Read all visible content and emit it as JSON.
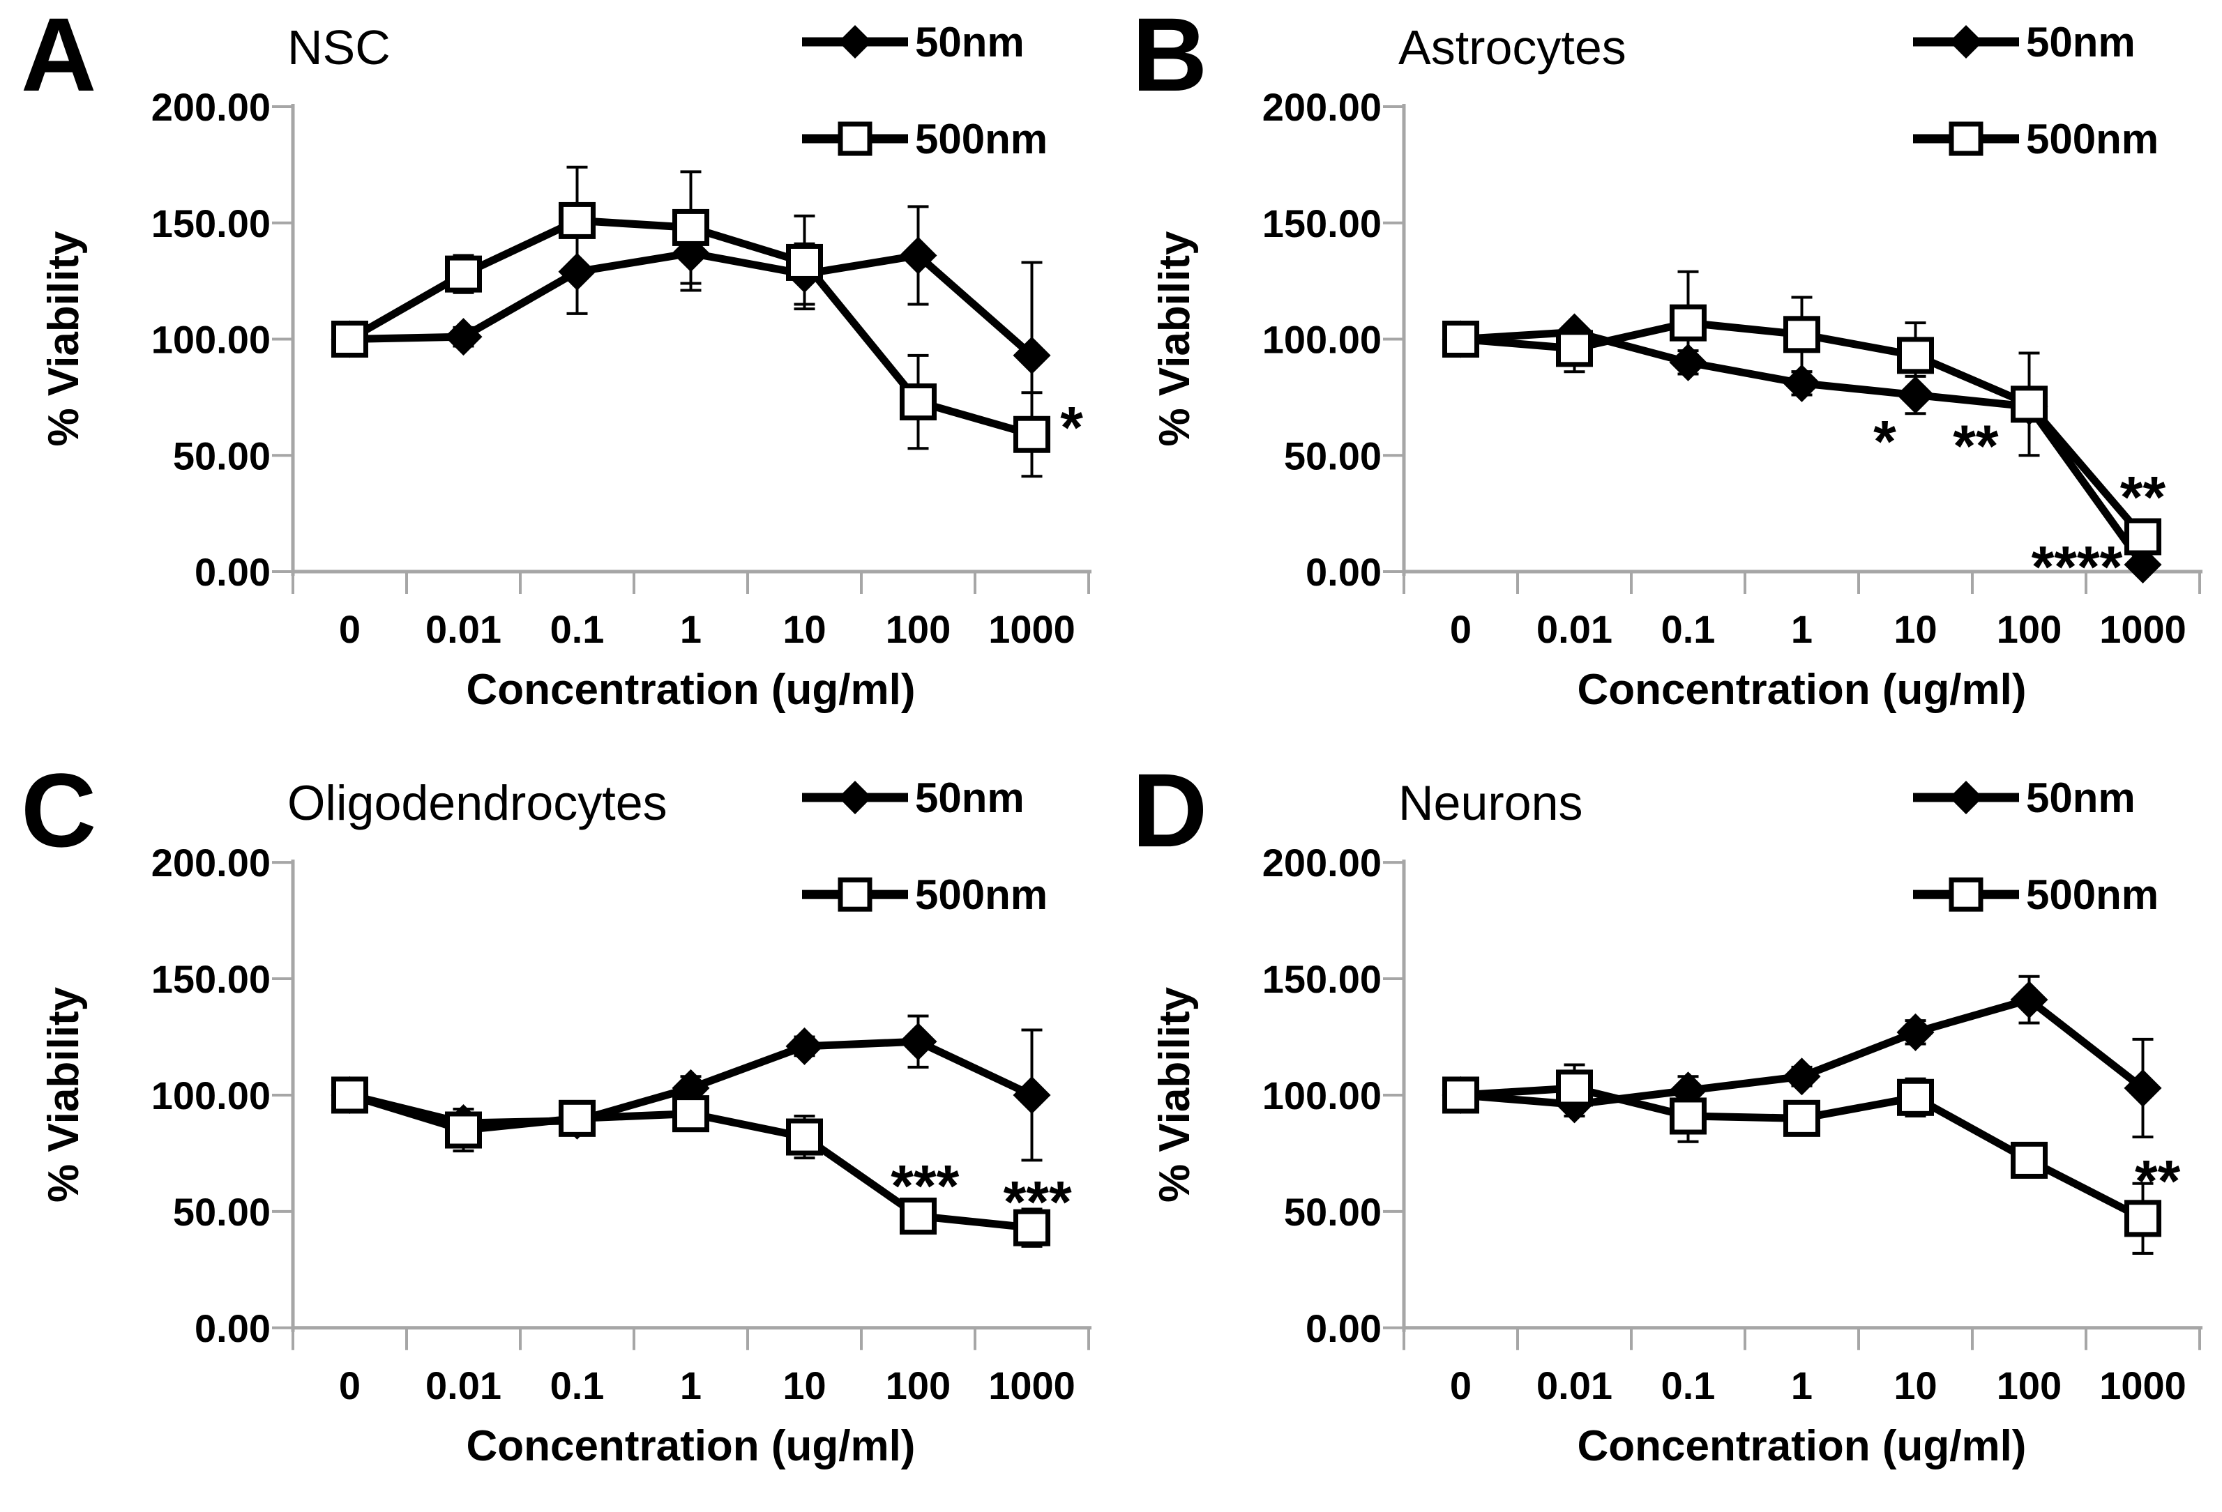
{
  "figure": {
    "description_visible_text_only": true,
    "colors": {
      "series": "#000000",
      "axis": "#a6a6a6",
      "text": "#000000",
      "background": "#ffffff"
    }
  },
  "chart_data": [
    {
      "panel_letter": "A",
      "title": "NSC",
      "type": "line",
      "categories": [
        "0",
        "0.01",
        "0.1",
        "1",
        "10",
        "100",
        "1000"
      ],
      "xlabel": "Concentration (ug/ml)",
      "ylabel": "% Viability",
      "ylim": [
        0,
        200
      ],
      "ytick_values": [
        200,
        150,
        100,
        50,
        0
      ],
      "ytick_labels": [
        "200.00",
        "150.00",
        "100.00",
        "50.00",
        "0.00"
      ],
      "grid": false,
      "legend_position": "top-right",
      "legend": [
        {
          "label": "50nm",
          "marker": "diamond"
        },
        {
          "label": "500nm",
          "marker": "square"
        }
      ],
      "series": [
        {
          "name": "50nm",
          "marker": "diamond",
          "values": [
            100,
            101,
            129,
            137,
            128,
            136,
            93
          ],
          "errors": [
            0,
            4,
            18,
            16,
            13,
            21,
            40
          ]
        },
        {
          "name": "500nm",
          "marker": "square",
          "values": [
            100,
            128,
            151,
            148,
            133,
            73,
            59
          ],
          "errors": [
            0,
            8,
            23,
            24,
            20,
            20,
            18
          ]
        }
      ],
      "annotations": [
        {
          "text": "*",
          "x": 6.35,
          "y": 69
        }
      ]
    },
    {
      "panel_letter": "B",
      "title": "Astrocytes",
      "type": "line",
      "categories": [
        "0",
        "0.01",
        "0.1",
        "1",
        "10",
        "100",
        "1000"
      ],
      "xlabel": "Concentration (ug/ml)",
      "ylabel": "% Viability",
      "ylim": [
        0,
        200
      ],
      "ytick_values": [
        200,
        150,
        100,
        50,
        0
      ],
      "ytick_labels": [
        "200.00",
        "150.00",
        "100.00",
        "50.00",
        "0.00"
      ],
      "grid": false,
      "legend_position": "top-right",
      "legend": [
        {
          "label": "50nm",
          "marker": "diamond"
        },
        {
          "label": "500nm",
          "marker": "square"
        }
      ],
      "series": [
        {
          "name": "50nm",
          "marker": "diamond",
          "values": [
            100,
            103,
            90,
            81,
            76,
            71,
            3
          ],
          "errors": [
            0,
            3,
            5,
            5,
            8,
            0,
            0
          ]
        },
        {
          "name": "500nm",
          "marker": "square",
          "values": [
            100,
            96,
            107,
            102,
            93,
            72,
            15
          ],
          "errors": [
            0,
            10,
            22,
            16,
            14,
            22,
            0
          ]
        }
      ],
      "annotations": [
        {
          "text": "*",
          "x": 3.73,
          "y": 63
        },
        {
          "text": "**",
          "x": 4.53,
          "y": 61
        },
        {
          "text": "****",
          "x": 5.42,
          "y": 9
        },
        {
          "text": "**",
          "x": 6.0,
          "y": 39
        }
      ]
    },
    {
      "panel_letter": "C",
      "title": "Oligodendrocytes",
      "type": "line",
      "categories": [
        "0",
        "0.01",
        "0.1",
        "1",
        "10",
        "100",
        "1000"
      ],
      "xlabel": "Concentration (ug/ml)",
      "ylabel": "% Viability",
      "ylim": [
        0,
        200
      ],
      "ytick_values": [
        200,
        150,
        100,
        50,
        0
      ],
      "ytick_labels": [
        "200.00",
        "150.00",
        "100.00",
        "50.00",
        "0.00"
      ],
      "grid": false,
      "legend_position": "top-right",
      "legend": [
        {
          "label": "50nm",
          "marker": "diamond"
        },
        {
          "label": "500nm",
          "marker": "square"
        }
      ],
      "series": [
        {
          "name": "50nm",
          "marker": "diamond",
          "values": [
            100,
            88,
            89,
            103,
            121,
            123,
            100
          ],
          "errors": [
            0,
            4,
            4,
            5,
            4,
            11,
            28
          ]
        },
        {
          "name": "500nm",
          "marker": "square",
          "values": [
            100,
            85,
            90,
            92,
            82,
            48,
            43
          ],
          "errors": [
            0,
            9,
            6,
            6,
            9,
            6,
            8
          ]
        }
      ],
      "annotations": [
        {
          "text": "***",
          "x": 5.06,
          "y": 68
        },
        {
          "text": "***",
          "x": 6.05,
          "y": 61
        }
      ]
    },
    {
      "panel_letter": "D",
      "title": "Neurons",
      "type": "line",
      "categories": [
        "0",
        "0.01",
        "0.1",
        "1",
        "10",
        "100",
        "1000"
      ],
      "xlabel": "Concentration (ug/ml)",
      "ylabel": "% Viability",
      "ylim": [
        0,
        200
      ],
      "ytick_values": [
        200,
        150,
        100,
        50,
        0
      ],
      "ytick_labels": [
        "200.00",
        "150.00",
        "100.00",
        "50.00",
        "0.00"
      ],
      "grid": false,
      "legend_position": "top-right",
      "legend": [
        {
          "label": "50nm",
          "marker": "diamond"
        },
        {
          "label": "500nm",
          "marker": "square"
        }
      ],
      "series": [
        {
          "name": "50nm",
          "marker": "diamond",
          "values": [
            100,
            96,
            102,
            108,
            127,
            141,
            103
          ],
          "errors": [
            0,
            5,
            6,
            4,
            5,
            10,
            21
          ]
        },
        {
          "name": "500nm",
          "marker": "square",
          "values": [
            100,
            103,
            91,
            90,
            99,
            72,
            47
          ],
          "errors": [
            0,
            10,
            11,
            7,
            8,
            0,
            15
          ]
        }
      ],
      "annotations": [
        {
          "text": "**",
          "x": 6.13,
          "y": 70
        }
      ]
    }
  ]
}
